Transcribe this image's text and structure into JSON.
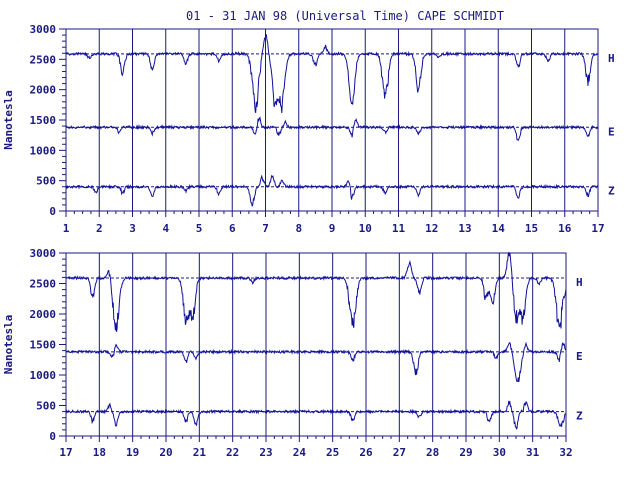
{
  "title": "01 - 31 JAN 98 (Universal Time) CAPE SCHMIDT",
  "colors": {
    "ink": "#1a1a80",
    "trace": "#10109a",
    "background": "#ffffff"
  },
  "chart_data": [
    {
      "type": "line",
      "panel": "top",
      "ylabel": "Nanotesla",
      "ylim": [
        0,
        3000
      ],
      "yticks": [
        "0",
        "500",
        "1000",
        "1500",
        "2000",
        "2500",
        "3000"
      ],
      "xlim": [
        1,
        17
      ],
      "xticks": [
        "1",
        "2",
        "3",
        "4",
        "5",
        "6",
        "7",
        "8",
        "9",
        "10",
        "11",
        "12",
        "13",
        "14",
        "15",
        "16",
        "17"
      ],
      "grid": "vertical lines at each day",
      "series": [
        {
          "name": "H",
          "baseline": 2590,
          "dips": [
            [
              1.7,
              -70
            ],
            [
              2.7,
              -300
            ],
            [
              3.6,
              -250
            ],
            [
              4.6,
              -180
            ],
            [
              5.6,
              -120
            ],
            [
              6.7,
              -850
            ],
            [
              7.0,
              300
            ],
            [
              7.3,
              -800
            ],
            [
              7.5,
              -720
            ],
            [
              8.5,
              -200
            ],
            [
              8.8,
              120
            ],
            [
              9.6,
              -750
            ],
            [
              10.6,
              -700
            ],
            [
              11.6,
              -550
            ],
            [
              12.2,
              -50
            ],
            [
              14.6,
              -200
            ],
            [
              15.5,
              -120
            ],
            [
              16.7,
              -450
            ]
          ]
        },
        {
          "name": "E",
          "baseline": 1380,
          "dips": [
            [
              2.6,
              -80
            ],
            [
              3.6,
              -100
            ],
            [
              6.7,
              -150
            ],
            [
              6.8,
              160
            ],
            [
              7.4,
              -120
            ],
            [
              7.6,
              80
            ],
            [
              9.6,
              -150
            ],
            [
              9.7,
              150
            ],
            [
              10.6,
              -80
            ],
            [
              11.6,
              -100
            ],
            [
              14.6,
              -200
            ],
            [
              16.7,
              -150
            ]
          ]
        },
        {
          "name": "Z",
          "baseline": 400,
          "dips": [
            [
              1.9,
              -100
            ],
            [
              2.7,
              -100
            ],
            [
              3.6,
              -150
            ],
            [
              4.6,
              -80
            ],
            [
              5.6,
              -120
            ],
            [
              6.6,
              -300
            ],
            [
              6.9,
              150
            ],
            [
              7.2,
              170
            ],
            [
              7.5,
              120
            ],
            [
              9.5,
              120
            ],
            [
              9.6,
              -200
            ],
            [
              10.6,
              -100
            ],
            [
              11.6,
              -150
            ],
            [
              14.6,
              -180
            ],
            [
              16.7,
              -150
            ]
          ]
        }
      ]
    },
    {
      "type": "line",
      "panel": "bottom",
      "ylabel": "Nanotesla",
      "ylim": [
        0,
        3000
      ],
      "yticks": [
        "0",
        "500",
        "1000",
        "1500",
        "2000",
        "2500",
        "3000"
      ],
      "xlim": [
        17,
        32
      ],
      "xticks": [
        "17",
        "18",
        "19",
        "20",
        "21",
        "22",
        "23",
        "24",
        "25",
        "26",
        "27",
        "28",
        "29",
        "30",
        "31",
        "32"
      ],
      "grid": "vertical lines at each day",
      "series": [
        {
          "name": "H",
          "baseline": 2590,
          "dips": [
            [
              17.8,
              -300
            ],
            [
              18.3,
              150
            ],
            [
              18.5,
              -800
            ],
            [
              20.6,
              -650
            ],
            [
              20.8,
              -600
            ],
            [
              22.6,
              -80
            ],
            [
              25.6,
              -800
            ],
            [
              27.3,
              250
            ],
            [
              27.6,
              -250
            ],
            [
              29.6,
              -350
            ],
            [
              29.8,
              -400
            ],
            [
              30.3,
              400
            ],
            [
              30.5,
              -600
            ],
            [
              30.7,
              -650
            ],
            [
              31.2,
              -100
            ],
            [
              31.8,
              -800
            ],
            [
              32.0,
              -150
            ]
          ]
        },
        {
          "name": "E",
          "baseline": 1380,
          "dips": [
            [
              18.4,
              -100
            ],
            [
              18.5,
              120
            ],
            [
              20.6,
              -150
            ],
            [
              20.9,
              -120
            ],
            [
              25.6,
              -150
            ],
            [
              27.5,
              -350
            ],
            [
              29.9,
              -100
            ],
            [
              30.3,
              150
            ],
            [
              30.5,
              -300
            ],
            [
              30.6,
              -350
            ],
            [
              30.8,
              120
            ],
            [
              31.8,
              -150
            ],
            [
              31.9,
              150
            ]
          ]
        },
        {
          "name": "Z",
          "baseline": 400,
          "dips": [
            [
              17.8,
              -150
            ],
            [
              18.3,
              100
            ],
            [
              18.5,
              -200
            ],
            [
              20.6,
              -150
            ],
            [
              20.9,
              -200
            ],
            [
              25.6,
              -150
            ],
            [
              27.6,
              -100
            ],
            [
              29.7,
              -180
            ],
            [
              30.3,
              150
            ],
            [
              30.5,
              -250
            ],
            [
              30.8,
              150
            ],
            [
              31.8,
              -200
            ],
            [
              31.9,
              -150
            ]
          ]
        }
      ]
    }
  ]
}
